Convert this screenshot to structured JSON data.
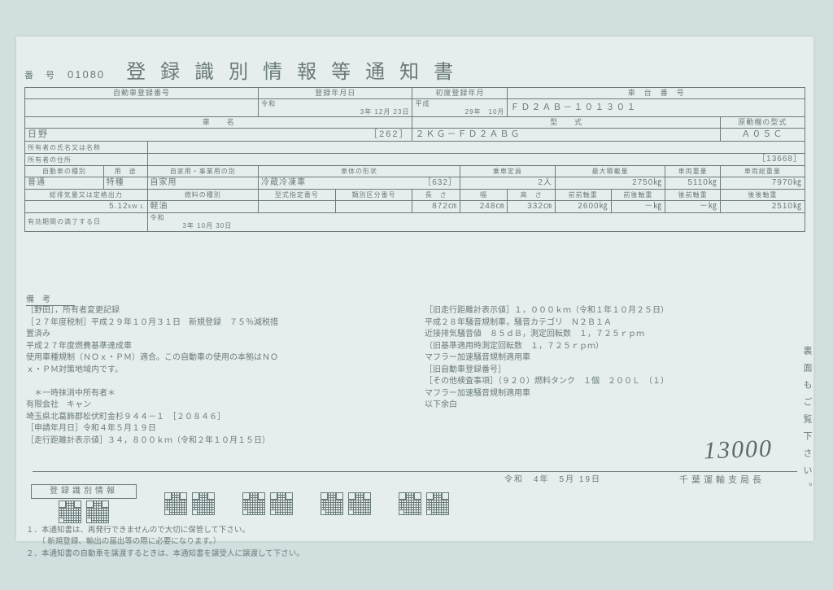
{
  "header": {
    "num_label": "番　号",
    "num_value": "01080",
    "title": "登録識別情報等通知書"
  },
  "table": {
    "reg_no_label": "自動車登録番号",
    "reg_date_label": "登録年月日",
    "first_reg_label": "初度登録年月",
    "chassis_label": "車　台　番　号",
    "era_reiwa": "令和",
    "reg_date": "3年 12月 23日",
    "era_heisei": "平成",
    "first_reg": "29年　10月",
    "chassis_no": "ＦＤ２ＡＢ－１０１３０１",
    "make_label": "車　　名",
    "type_label": "型　　式",
    "engine_label": "原動機の型式",
    "make": "日野",
    "type_code": "［262］",
    "type": "２ＫＧ－ＦＤ２ＡＢＧ",
    "engine": "Ａ０５Ｃ",
    "owner_name_label": "所有者の氏名又は名称",
    "owner_addr_label": "所有者の住所",
    "owner_addr_tail": "［13668］",
    "class_label": "自動車の種別",
    "use_label": "用　途",
    "private_label": "自家用・事業用の別",
    "body_label": "車体の形状",
    "capacity_label": "乗車定員",
    "maxload_label": "最大積載量",
    "weight_label": "車両重量",
    "gross_label": "車両総重量",
    "class": "普通",
    "use": "特種",
    "private": "自家用",
    "body": "冷蔵冷凍車",
    "body_tail": "［632］",
    "capacity": "2人",
    "maxload": "2750㎏",
    "weight": "5110㎏",
    "gross": "7970㎏",
    "disp_label": "総排気量又は定格出力",
    "fuel_label": "燃料の種別",
    "typedes_label": "型式指定番号",
    "catnum_label": "類別区分番号",
    "len_label": "長　さ",
    "wid_label": "幅",
    "hei_label": "高　さ",
    "ff_label": "前前軸重",
    "fr_label": "前後軸重",
    "rf_label": "後前軸重",
    "rr_label": "後後軸重",
    "disp": "5.12",
    "disp_unit": "kW L",
    "fuel": "軽油",
    "len": "872㎝",
    "wid": "248㎝",
    "hei": "332㎝",
    "ff": "2600㎏",
    "fr": "－㎏",
    "rf": "－㎏",
    "rr": "2510㎏",
    "expiry_label": "有効期間の満了する日",
    "expiry_era": "令和",
    "expiry": "3年 10月 30日",
    "remarks_label": "備　考"
  },
  "remarks_left": [
    "［野田］，所有者変更記録",
    "［２７年度税制］平成２９年１０月３１日　新規登録　７５％減税措",
    "置済み",
    "平成２７年度燃費基準達成車",
    "使用車種規制（ＮＯｘ・ＰＭ）適合。この自動車の使用の本拠はＮＯ",
    "ｘ・ＰＭ対策地域内です。",
    "",
    "　＊一時抹消中所有者＊",
    "有限会社　キャン",
    "埼玉県北葛飾郡松伏町金杉９４４－１　［２０８４６］",
    "［申請年月日］令和４年５月１９日",
    "［走行距離計表示値］３４，８００ｋｍ（令和２年１０月１５日）"
  ],
  "remarks_right": [
    "［旧走行距離計表示値］１，０００ｋｍ（令和１年１０月２５日）",
    "平成２８年騒音規制車，騒音カテゴリ　Ｎ２Ｂ１Ａ",
    "近接排気騒音値　８５ｄＢ，測定回転数　１，７２５ｒｐｍ",
    "（旧基準適用時測定回転数　１，７２５ｒｐｍ）",
    "マフラー加速騒音規制適用車",
    "［旧自動車登録番号］",
    "［その他検査事項］（９２０）燃料タンク　１個　２００Ｌ　（１）",
    "マフラー加速騒音規制適用車",
    "以下余白"
  ],
  "handwritten": "13000",
  "issue": {
    "date": "令和　4年　5月 19日",
    "authority": "千葉運輸支局長"
  },
  "qr_label": "登録識別情報",
  "footer_notes": [
    "１．本通知書は、再発行できませんので大切に保管して下さい。",
    "　　（ 新規登録、輸出の届出等の際に必要になります。）",
    "２．本通知書の自動車を譲渡するときは、本通知書を譲受人に譲渡して下さい。"
  ],
  "side_text": "裏面もご覧下さい。"
}
